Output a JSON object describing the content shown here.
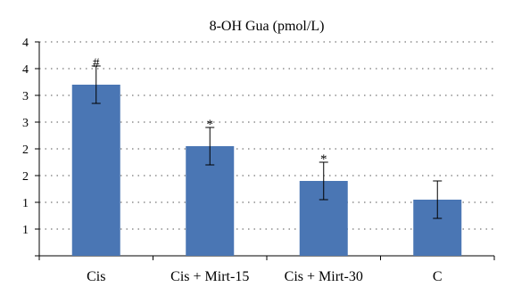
{
  "chart_data": {
    "type": "bar",
    "title": "8-OH Gua (pmol/L)",
    "xlabel": "",
    "ylabel": "",
    "categories": [
      "Cis",
      "Cis + Mirt-15",
      "Cis + Mirt-30",
      "C"
    ],
    "values": [
      3.2,
      2.05,
      1.4,
      1.05
    ],
    "error": [
      0.7,
      0.7,
      0.7,
      0.7
    ],
    "annotations": [
      "#",
      "*",
      "*",
      ""
    ],
    "ylim": [
      0,
      4
    ],
    "ytick_values": [
      0,
      0.5,
      1,
      1.5,
      2,
      2.5,
      3,
      3.5,
      4
    ],
    "ytick_labels": [
      "",
      "1",
      "1",
      "2",
      "2",
      "3",
      "3",
      "4",
      "4"
    ],
    "grid": true,
    "bar_color": "#4a76b4"
  }
}
